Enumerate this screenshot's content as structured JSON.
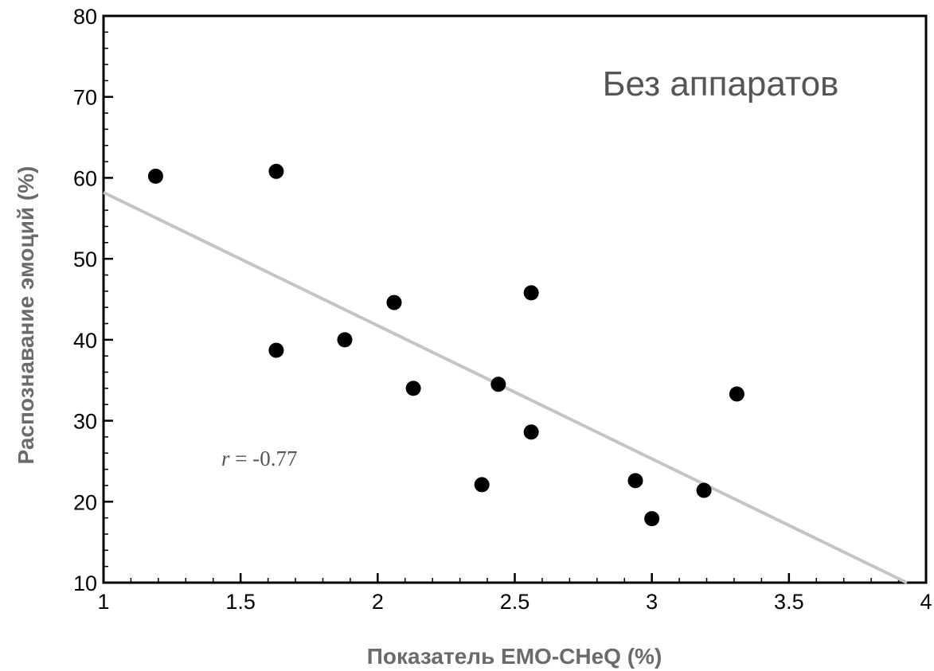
{
  "chart_data": {
    "type": "scatter",
    "title": "",
    "annotation": "Без аппаратов",
    "xlabel": "Показатель EMO-CHeQ (%)",
    "ylabel": "Распознавание эмоций (%)",
    "correlation_label": {
      "symbol": "r",
      "text": " = -0.77"
    },
    "xlim": [
      1,
      4
    ],
    "ylim": [
      10,
      80
    ],
    "x_ticks": [
      1,
      1.5,
      2,
      2.5,
      3,
      3.5,
      4
    ],
    "x_tick_labels": [
      "1",
      "1.5",
      "2",
      "2.5",
      "3",
      "3.5",
      "4"
    ],
    "y_ticks": [
      10,
      20,
      30,
      40,
      50,
      60,
      70,
      80
    ],
    "y_tick_labels": [
      "10",
      "20",
      "30",
      "40",
      "50",
      "60",
      "70",
      "80"
    ],
    "points": [
      {
        "x": 1.19,
        "y": 60.2
      },
      {
        "x": 1.63,
        "y": 60.8
      },
      {
        "x": 1.63,
        "y": 38.7
      },
      {
        "x": 1.88,
        "y": 40.0
      },
      {
        "x": 2.06,
        "y": 44.6
      },
      {
        "x": 2.13,
        "y": 34.0
      },
      {
        "x": 2.38,
        "y": 22.1
      },
      {
        "x": 2.44,
        "y": 34.5
      },
      {
        "x": 2.56,
        "y": 45.8
      },
      {
        "x": 2.56,
        "y": 28.6
      },
      {
        "x": 2.94,
        "y": 22.6
      },
      {
        "x": 3.0,
        "y": 17.9
      },
      {
        "x": 3.19,
        "y": 21.4
      },
      {
        "x": 3.31,
        "y": 33.3
      }
    ],
    "trend_line": {
      "x": [
        1,
        3.93
      ],
      "y": [
        58.2,
        10
      ]
    },
    "colors": {
      "points": "#000000",
      "trend": "#c4c4c4",
      "axis": "#000000"
    },
    "grid": false
  }
}
